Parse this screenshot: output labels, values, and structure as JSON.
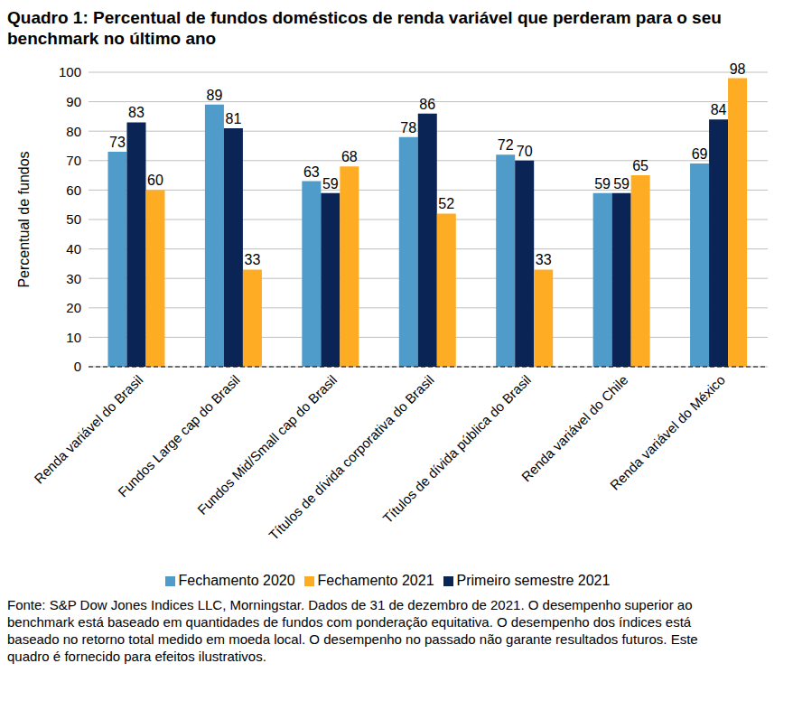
{
  "chart_data": {
    "type": "bar",
    "title": "Quadro 1: Percentual de fundos domésticos de renda variável que perderam para o seu benchmark no último ano",
    "y_label": "Percentual de fundos",
    "footnote": "Fonte: S&P Dow Jones Indices LLC, Morningstar. Dados de 31 de dezembro de 2021. O desempenho superior ao benchmark está baseado em quantidades de fundos com ponderação equitativa. O desempenho dos índices está baseado no retorno total medido em moeda local. O desempenho no passado não garante resultados futuros. Este quadro é fornecido para efeitos ilustrativos.",
    "categories": [
      "Renda variável do Brasil",
      "Fundos Large cap do Brasil",
      "Fundos Mid/Small cap do Brasil",
      "Títulos de dívida corporativa do Brasil",
      "Títulos de dívida pública do Brasil",
      "Renda variável do Chile",
      "Renda variável do México"
    ],
    "series": [
      {
        "name": "Fechamento 2020",
        "color": "#4f9bc9",
        "values": [
          73,
          89,
          63,
          78,
          72,
          59,
          69
        ]
      },
      {
        "name": "Primeiro semestre 2021",
        "color": "#0b2456",
        "values": [
          83,
          81,
          59,
          86,
          70,
          59,
          84
        ]
      },
      {
        "name": "Fechamento 2021",
        "color": "#fdac24",
        "values": [
          60,
          33,
          68,
          52,
          33,
          65,
          98
        ]
      }
    ],
    "ylim": [
      0,
      100
    ],
    "yticks": [
      0,
      10,
      20,
      30,
      40,
      50,
      60,
      70,
      80,
      90,
      100
    ],
    "grid": true,
    "legend": "bottom",
    "data_labels": true
  }
}
